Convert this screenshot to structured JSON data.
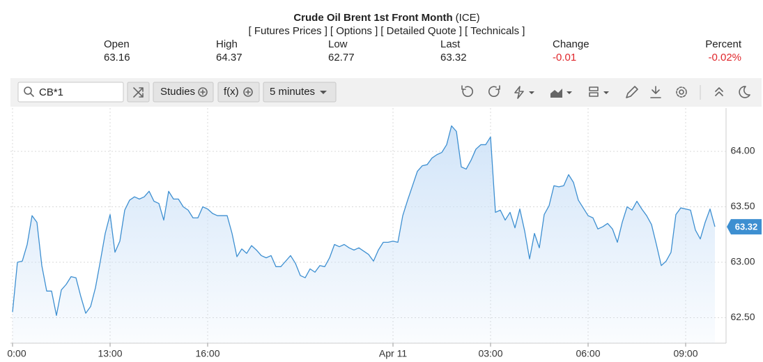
{
  "header": {
    "title": "Crude Oil Brent 1st Front Month",
    "exchange": "(ICE)",
    "links": [
      "[ Futures Prices ]",
      "[ Options ]",
      "[ Detailed Quote ]",
      "[ Technicals ]"
    ]
  },
  "quote": [
    {
      "label": "Open",
      "value": "63.16"
    },
    {
      "label": "High",
      "value": "64.37"
    },
    {
      "label": "Low",
      "value": "62.77"
    },
    {
      "label": "Last",
      "value": "63.32"
    },
    {
      "label": "Change",
      "value": "-0.01"
    },
    {
      "label": "Percent",
      "value": "-0.02%"
    }
  ],
  "toolbar": {
    "symbol": "CB*1",
    "studies": "Studies",
    "function": "f(x)",
    "interval": "5 minutes"
  },
  "chart_data": {
    "type": "area",
    "color": "#3d8fd1",
    "fill": "#cfe3f8",
    "grid": true,
    "categories": [
      "0:00",
      null,
      null,
      null,
      null,
      null,
      null,
      null,
      null,
      null,
      null,
      null,
      null,
      null,
      null,
      null,
      null,
      null,
      null,
      null,
      "13:00",
      null,
      null,
      null,
      null,
      null,
      null,
      null,
      null,
      null,
      null,
      null,
      null,
      null,
      null,
      null,
      null,
      null,
      null,
      null,
      "16:00",
      null,
      null,
      null,
      null,
      null,
      null,
      null,
      null,
      null,
      null,
      null,
      null,
      null,
      null,
      null,
      null,
      null,
      null,
      null,
      null,
      null,
      null,
      null,
      null,
      null,
      null,
      null,
      null,
      null,
      null,
      null,
      null,
      null,
      null,
      null,
      null,
      null,
      "Apr 11",
      null,
      null,
      null,
      null,
      null,
      null,
      null,
      null,
      null,
      null,
      null,
      null,
      null,
      null,
      null,
      null,
      null,
      null,
      null,
      "03:00",
      null,
      null,
      null,
      null,
      null,
      null,
      null,
      null,
      null,
      null,
      null,
      null,
      null,
      null,
      null,
      null,
      null,
      null,
      null,
      "06:00",
      null,
      null,
      null,
      null,
      null,
      null,
      null,
      null,
      null,
      null,
      null,
      null,
      null,
      null,
      null,
      null,
      null,
      null,
      null,
      "09:00",
      null,
      null,
      null,
      null,
      null,
      null
    ],
    "values": [
      62.55,
      63.0,
      63.01,
      63.16,
      63.42,
      63.36,
      62.97,
      62.74,
      62.74,
      62.52,
      62.75,
      62.8,
      62.87,
      62.86,
      62.69,
      62.54,
      62.6,
      62.77,
      63.01,
      63.26,
      63.43,
      63.09,
      63.19,
      63.47,
      63.56,
      63.59,
      63.57,
      63.59,
      63.64,
      63.55,
      63.53,
      63.38,
      63.64,
      63.57,
      63.57,
      63.5,
      63.47,
      63.4,
      63.4,
      63.5,
      63.48,
      63.44,
      63.42,
      63.42,
      63.42,
      63.26,
      63.05,
      63.12,
      63.08,
      63.15,
      63.11,
      63.06,
      63.04,
      63.06,
      62.96,
      62.96,
      63.01,
      63.06,
      62.99,
      62.88,
      62.86,
      62.94,
      62.91,
      62.97,
      62.96,
      63.04,
      63.16,
      63.14,
      63.16,
      63.13,
      63.11,
      63.13,
      63.1,
      63.07,
      63.01,
      63.11,
      63.18,
      63.18,
      63.19,
      63.18,
      63.42,
      63.56,
      63.69,
      63.82,
      63.87,
      63.88,
      63.94,
      63.97,
      63.99,
      64.06,
      64.23,
      64.18,
      63.86,
      63.84,
      63.92,
      64.02,
      64.06,
      64.06,
      64.13,
      63.45,
      63.47,
      63.38,
      63.45,
      63.31,
      63.48,
      63.28,
      63.03,
      63.26,
      63.13,
      63.43,
      63.51,
      63.69,
      63.68,
      63.69,
      63.79,
      63.72,
      63.56,
      63.49,
      63.42,
      63.4,
      63.3,
      63.32,
      63.35,
      63.3,
      63.18,
      63.36,
      63.5,
      63.47,
      63.55,
      63.48,
      63.42,
      63.34,
      63.16,
      62.97,
      63.01,
      63.09,
      63.43,
      63.49,
      63.48,
      63.47,
      63.29,
      63.21,
      63.36,
      63.48,
      63.32
    ],
    "ylim": [
      62.27,
      64.39
    ],
    "yticks": [
      {
        "value": 62.5,
        "label": "62.50"
      },
      {
        "value": 63,
        "label": "63.00"
      },
      {
        "value": 63.5,
        "label": "63.50"
      },
      {
        "value": 64,
        "label": "64.00"
      }
    ],
    "current_price": 63.32
  }
}
